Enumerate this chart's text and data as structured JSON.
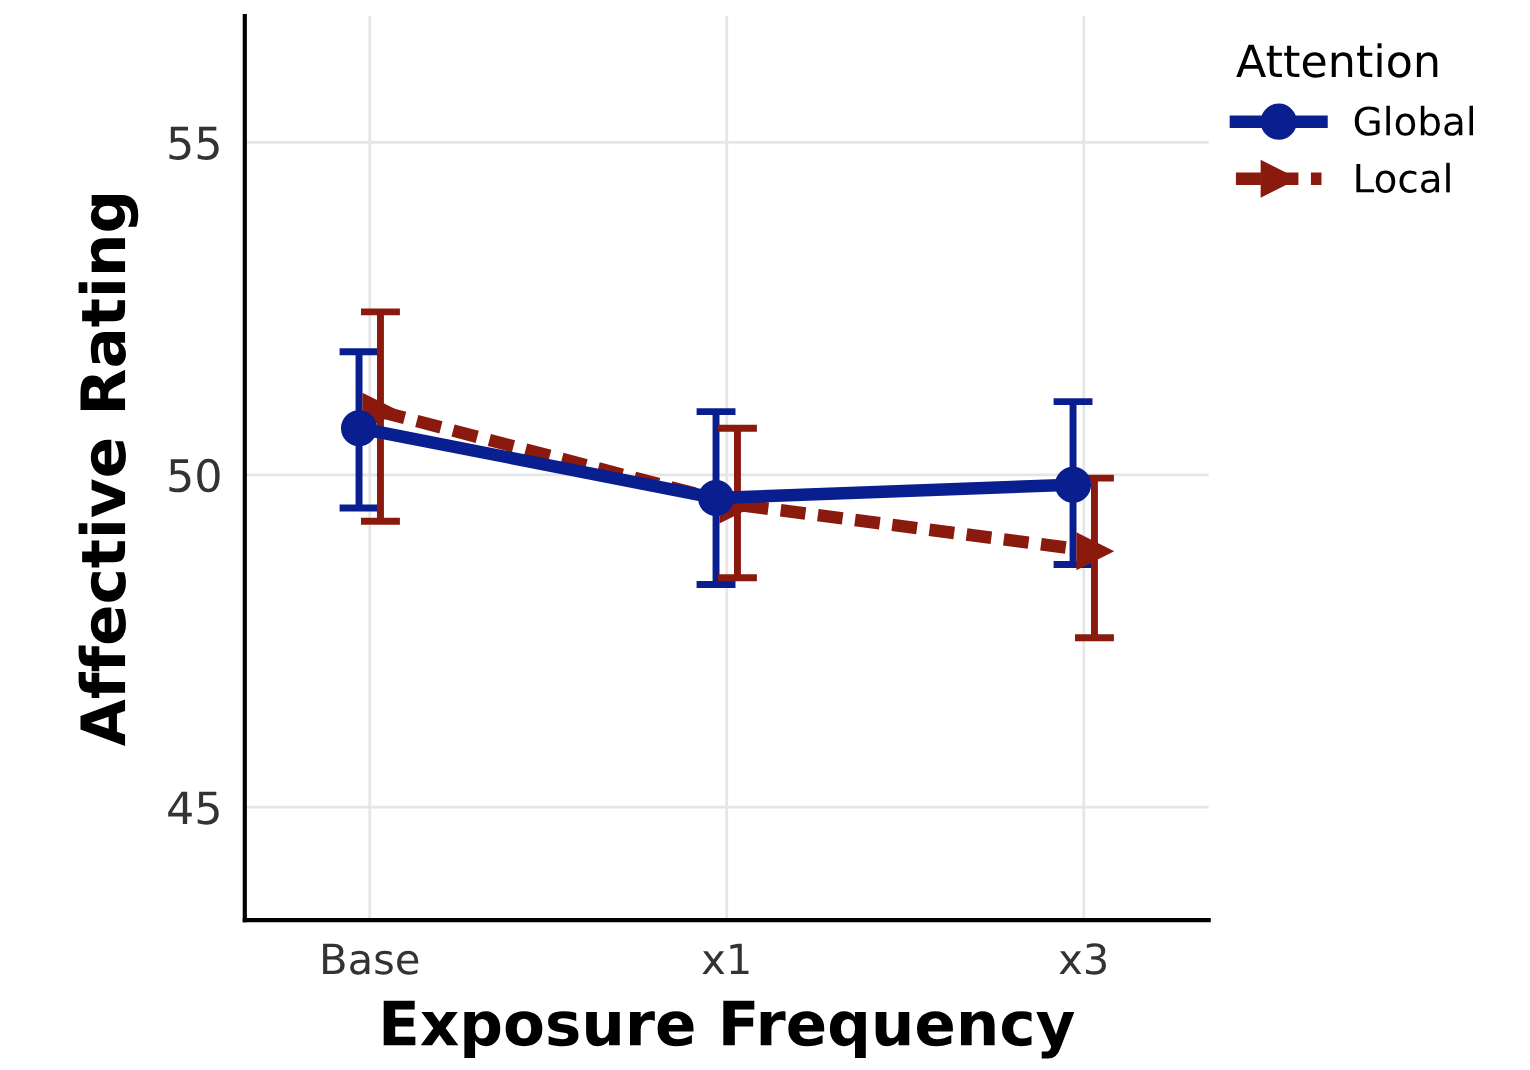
{
  "chart_data": {
    "type": "line",
    "xlabel": "Exposure Frequency",
    "ylabel": "Affective Rating",
    "legend_title": "Attention",
    "categories": [
      "Base",
      "x1",
      "x3"
    ],
    "series": [
      {
        "name": "Global",
        "color": "#0a1f8f",
        "values": [
          50.7,
          49.65,
          49.85
        ],
        "errors": [
          [
            49.5,
            51.85
          ],
          [
            48.35,
            50.95
          ],
          [
            48.65,
            51.1
          ]
        ],
        "marker": "circle",
        "line_style": "solid"
      },
      {
        "name": "Local",
        "color": "#8b1a0e",
        "values": [
          50.95,
          49.55,
          48.85
        ],
        "errors": [
          [
            49.3,
            52.45
          ],
          [
            48.45,
            50.7
          ],
          [
            47.55,
            49.95
          ]
        ],
        "marker": "triangle",
        "line_style": "dashed"
      }
    ],
    "ylim": [
      43.3,
      56.9
    ],
    "yticks": [
      45,
      50,
      55
    ],
    "grid": true,
    "legend": "top right"
  }
}
